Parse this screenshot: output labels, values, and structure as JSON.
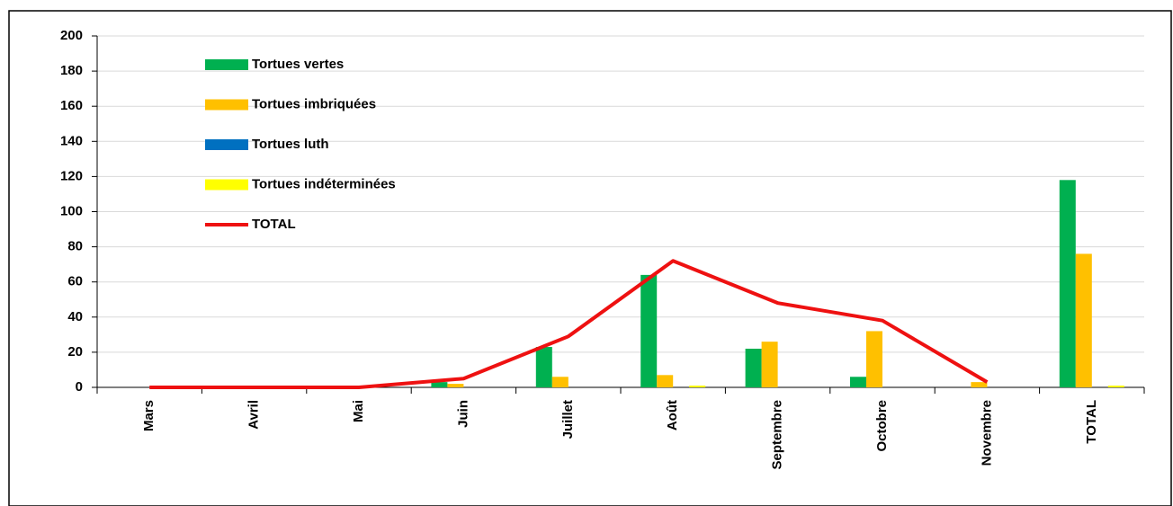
{
  "chart_data": {
    "type": "bar",
    "categories": [
      "Mars",
      "Avril",
      "Mai",
      "Juin",
      "Juillet",
      "Août",
      "Septembre",
      "Octobre",
      "Novembre",
      "TOTAL"
    ],
    "series": [
      {
        "name": "Tortues vertes",
        "color": "#00b050",
        "values": [
          0,
          0,
          0,
          3,
          23,
          64,
          22,
          6,
          0,
          118
        ]
      },
      {
        "name": "Tortues imbriquées",
        "color": "#ffc000",
        "values": [
          0,
          0,
          0,
          2,
          6,
          7,
          26,
          32,
          3,
          76
        ]
      },
      {
        "name": "Tortues luth",
        "color": "#0070c0",
        "values": [
          0,
          0,
          0,
          0,
          0,
          0,
          0,
          0,
          0,
          0
        ]
      },
      {
        "name": "Tortues indéterminées",
        "color": "#ffff00",
        "values": [
          0,
          0,
          0,
          0,
          0,
          1,
          0,
          0,
          0,
          1
        ]
      },
      {
        "name": "TOTAL",
        "color": "#ee1111",
        "type": "line",
        "values": [
          0,
          0,
          0,
          5,
          29,
          72,
          48,
          38,
          3,
          null
        ]
      }
    ],
    "ylim": [
      0,
      200
    ],
    "yticks": [
      0,
      20,
      40,
      60,
      80,
      100,
      120,
      140,
      160,
      180,
      200
    ],
    "grid": true,
    "legend": "upper left"
  }
}
